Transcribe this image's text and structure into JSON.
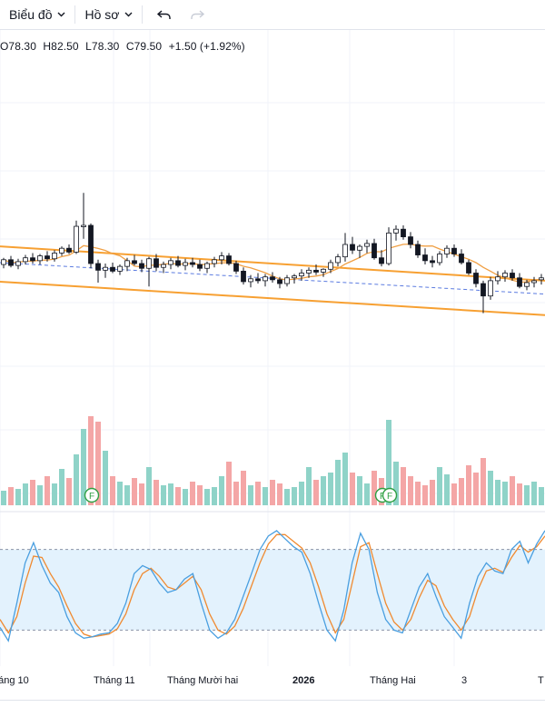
{
  "toolbar": {
    "chart_menu": "Biểu đồ",
    "profile_menu": "Hồ sơ",
    "undo_icon": "undo-arrow",
    "redo_icon": "redo-arrow"
  },
  "ohlc": {
    "open": "O78.30",
    "high": "H82.50",
    "low": "L78.30",
    "close": "C79.50",
    "change": "+1.50 (+1.92%)"
  },
  "colors": {
    "up": "#26a69a",
    "down": "#ef5350",
    "vol_up": "#8fd3c8",
    "vol_down": "#f4a6a6",
    "channel": "#f7a032",
    "ma": "#f0a045",
    "trend": "#5b7be0",
    "stoch_k": "#4a9fe0",
    "stoch_d": "#f08a30",
    "stoch_band": "#e3f2fd"
  },
  "chart_data": {
    "type": "candlestick",
    "x_labels": [
      "háng 10",
      "Tháng 11",
      "Tháng Mười hai",
      "2026",
      "Tháng Hai",
      "3",
      "T"
    ],
    "candles": [
      [
        78.9,
        79.6,
        78.5,
        79.4
      ],
      [
        79.4,
        79.8,
        78.6,
        78.8
      ],
      [
        78.8,
        79.5,
        78.4,
        79.2
      ],
      [
        79.2,
        79.9,
        78.9,
        79.6
      ],
      [
        79.6,
        80.1,
        79.0,
        79.3
      ],
      [
        79.3,
        80.0,
        78.9,
        79.8
      ],
      [
        79.8,
        80.3,
        79.2,
        79.5
      ],
      [
        79.5,
        80.4,
        79.2,
        80.1
      ],
      [
        80.1,
        80.8,
        79.8,
        80.6
      ],
      [
        80.6,
        81.0,
        80.0,
        80.2
      ],
      [
        80.2,
        83.5,
        80.0,
        82.9
      ],
      [
        82.9,
        86.4,
        81.6,
        83.0
      ],
      [
        83.0,
        83.2,
        78.5,
        79.0
      ],
      [
        79.0,
        79.4,
        77.0,
        78.3
      ],
      [
        78.3,
        79.0,
        77.5,
        78.6
      ],
      [
        78.6,
        79.1,
        78.0,
        78.2
      ],
      [
        78.2,
        78.9,
        77.8,
        78.7
      ],
      [
        78.7,
        79.6,
        78.2,
        79.3
      ],
      [
        79.3,
        79.9,
        78.8,
        79.0
      ],
      [
        79.0,
        79.4,
        78.1,
        78.5
      ],
      [
        78.5,
        79.7,
        76.6,
        79.5
      ],
      [
        79.5,
        80.0,
        78.2,
        78.6
      ],
      [
        78.6,
        79.2,
        78.0,
        78.9
      ],
      [
        78.9,
        79.6,
        78.4,
        79.3
      ],
      [
        79.3,
        79.8,
        78.6,
        78.8
      ],
      [
        78.8,
        79.5,
        78.3,
        79.1
      ],
      [
        79.1,
        79.6,
        78.6,
        78.9
      ],
      [
        78.9,
        79.4,
        78.2,
        78.5
      ],
      [
        78.5,
        79.2,
        78.0,
        79.0
      ],
      [
        79.0,
        79.7,
        78.6,
        79.4
      ],
      [
        79.4,
        80.2,
        78.9,
        79.8
      ],
      [
        79.8,
        80.1,
        78.8,
        79.0
      ],
      [
        79.0,
        79.3,
        77.9,
        78.2
      ],
      [
        78.2,
        78.6,
        76.8,
        77.1
      ],
      [
        77.1,
        77.8,
        76.5,
        77.4
      ],
      [
        77.4,
        78.0,
        76.9,
        77.2
      ],
      [
        77.2,
        77.9,
        76.6,
        77.6
      ],
      [
        77.6,
        78.1,
        77.0,
        77.3
      ],
      [
        77.3,
        77.6,
        76.4,
        76.9
      ],
      [
        76.9,
        77.8,
        76.6,
        77.5
      ],
      [
        77.5,
        77.9,
        76.9,
        77.7
      ],
      [
        77.7,
        78.4,
        77.2,
        78.0
      ],
      [
        78.0,
        78.6,
        77.5,
        78.3
      ],
      [
        78.3,
        78.9,
        77.8,
        78.1
      ],
      [
        78.1,
        78.5,
        77.6,
        78.4
      ],
      [
        78.4,
        79.4,
        78.0,
        79.1
      ],
      [
        79.1,
        80.0,
        78.7,
        79.7
      ],
      [
        79.7,
        82.2,
        79.2,
        81.0
      ],
      [
        81.0,
        81.8,
        80.0,
        80.4
      ],
      [
        80.4,
        81.0,
        79.6,
        80.8
      ],
      [
        80.8,
        81.5,
        80.1,
        81.1
      ],
      [
        81.1,
        81.6,
        79.4,
        79.6
      ],
      [
        79.6,
        80.4,
        78.7,
        79.0
      ],
      [
        79.0,
        82.8,
        78.8,
        82.2
      ],
      [
        82.2,
        83.0,
        81.4,
        82.6
      ],
      [
        82.6,
        83.0,
        81.5,
        81.8
      ],
      [
        81.8,
        82.3,
        80.6,
        81.0
      ],
      [
        81.0,
        81.4,
        79.6,
        79.9
      ],
      [
        79.9,
        80.6,
        78.9,
        79.3
      ],
      [
        79.3,
        79.8,
        78.6,
        79.1
      ],
      [
        79.1,
        80.3,
        78.8,
        80.0
      ],
      [
        80.0,
        80.9,
        79.6,
        80.6
      ],
      [
        80.6,
        81.0,
        79.7,
        80.0
      ],
      [
        80.0,
        80.5,
        78.9,
        79.1
      ],
      [
        79.1,
        79.4,
        77.8,
        78.0
      ],
      [
        78.0,
        78.4,
        76.5,
        76.9
      ],
      [
        76.9,
        77.2,
        73.8,
        75.6
      ],
      [
        75.6,
        77.6,
        75.2,
        77.2
      ],
      [
        77.2,
        78.2,
        76.8,
        77.6
      ],
      [
        77.6,
        78.3,
        77.1,
        78.0
      ],
      [
        78.0,
        78.4,
        77.2,
        77.5
      ],
      [
        77.5,
        78.0,
        76.4,
        76.6
      ],
      [
        76.6,
        77.3,
        76.2,
        77.0
      ],
      [
        77.0,
        77.6,
        76.5,
        77.2
      ],
      [
        77.3,
        77.9,
        76.8,
        77.5
      ]
    ],
    "volume": [
      0.8,
      1.0,
      0.9,
      1.2,
      1.4,
      1.1,
      1.6,
      1.2,
      2.0,
      1.5,
      2.8,
      4.2,
      4.9,
      4.6,
      3.0,
      1.6,
      1.3,
      1.1,
      1.5,
      1.2,
      2.1,
      1.4,
      1.1,
      1.2,
      1.0,
      0.9,
      1.3,
      1.1,
      0.9,
      1.0,
      1.6,
      2.4,
      1.3,
      1.9,
      1.1,
      1.3,
      1.0,
      1.4,
      1.2,
      0.9,
      1.0,
      1.3,
      2.1,
      1.4,
      1.6,
      1.8,
      2.5,
      2.9,
      1.8,
      1.6,
      1.2,
      1.9,
      1.5,
      4.7,
      2.4,
      2.1,
      1.6,
      1.3,
      1.1,
      1.4,
      2.1,
      1.7,
      1.2,
      1.5,
      2.2,
      1.8,
      2.6,
      1.9,
      1.4,
      1.3,
      1.6,
      1.2,
      1.1,
      1.3,
      1.0
    ],
    "stoch_k": [
      22,
      12,
      40,
      70,
      85,
      68,
      55,
      48,
      30,
      18,
      14,
      15,
      17,
      18,
      25,
      40,
      62,
      68,
      65,
      55,
      48,
      50,
      58,
      62,
      40,
      20,
      14,
      18,
      28,
      45,
      62,
      80,
      90,
      94,
      88,
      82,
      78,
      62,
      40,
      20,
      12,
      35,
      70,
      92,
      80,
      48,
      28,
      20,
      18,
      35,
      52,
      62,
      45,
      30,
      22,
      14,
      40,
      60,
      70,
      64,
      62,
      80,
      86,
      70,
      84,
      94
    ],
    "stoch_d": [
      28,
      18,
      30,
      55,
      75,
      74,
      62,
      52,
      38,
      25,
      17,
      15,
      16,
      17,
      21,
      32,
      50,
      62,
      66,
      60,
      52,
      50,
      55,
      60,
      50,
      32,
      20,
      17,
      23,
      36,
      53,
      70,
      84,
      91,
      91,
      86,
      81,
      70,
      52,
      32,
      18,
      28,
      55,
      82,
      85,
      62,
      40,
      26,
      20,
      28,
      44,
      57,
      53,
      38,
      28,
      20,
      30,
      50,
      64,
      66,
      63,
      74,
      83,
      78,
      82,
      90
    ],
    "stoch_levels": [
      80,
      20
    ],
    "stoch_range": [
      0,
      100
    ]
  }
}
